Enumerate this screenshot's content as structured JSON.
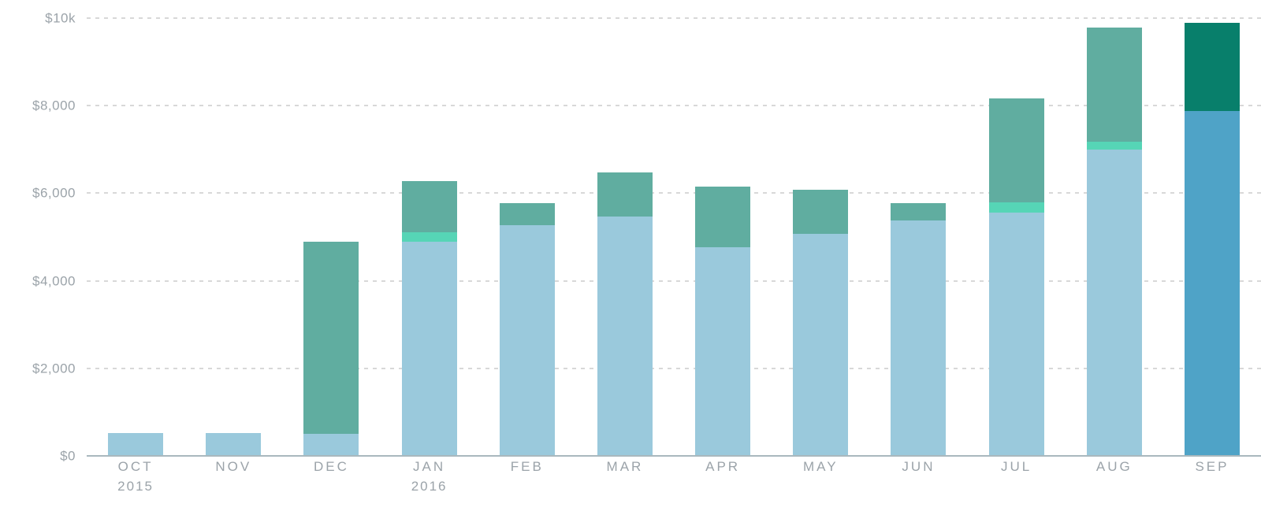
{
  "chart_data": {
    "type": "bar",
    "stacked": true,
    "title": "",
    "xlabel": "",
    "ylabel": "",
    "ylim": [
      0,
      10000
    ],
    "grid": "dashed-horizontal",
    "legend": "none",
    "y_ticks": [
      {
        "value": 0,
        "label": "$0"
      },
      {
        "value": 2000,
        "label": "$2,000"
      },
      {
        "value": 4000,
        "label": "$4,000"
      },
      {
        "value": 6000,
        "label": "$6,000"
      },
      {
        "value": 8000,
        "label": "$8,000"
      },
      {
        "value": 10000,
        "label": "$10k"
      }
    ],
    "categories": [
      {
        "label": "OCT",
        "sublabel": "2015"
      },
      {
        "label": "NOV"
      },
      {
        "label": "DEC"
      },
      {
        "label": "JAN",
        "sublabel": "2016"
      },
      {
        "label": "FEB"
      },
      {
        "label": "MAR"
      },
      {
        "label": "APR"
      },
      {
        "label": "MAY"
      },
      {
        "label": "JUN"
      },
      {
        "label": "JUL"
      },
      {
        "label": "AUG"
      },
      {
        "label": "SEP"
      }
    ],
    "series": [
      {
        "name": "light-blue",
        "color": "#9ac9dc",
        "values": [
          530,
          530,
          510,
          4890,
          5270,
          5460,
          4770,
          5070,
          5370,
          5560,
          7000,
          7880
        ]
      },
      {
        "name": "mint",
        "color": "#56d5b6",
        "values": [
          0,
          0,
          0,
          220,
          0,
          0,
          0,
          0,
          0,
          240,
          170,
          0
        ]
      },
      {
        "name": "teal",
        "color": "#60ada0",
        "values": [
          0,
          0,
          4390,
          1160,
          500,
          1020,
          1390,
          1010,
          400,
          2360,
          2620,
          2010
        ]
      }
    ],
    "totals": [
      530,
      530,
      4900,
      6270,
      5770,
      6480,
      6160,
      6080,
      5770,
      8160,
      9790,
      9890
    ],
    "highlight": {
      "index": 11,
      "colors": {
        "light-blue": "#4fa3c7",
        "teal": "#087f6b"
      }
    },
    "colors": {
      "gridline": "#d8d8d8",
      "axis_line": "#a9b8be",
      "tick_label": "#9ba3a9"
    }
  }
}
